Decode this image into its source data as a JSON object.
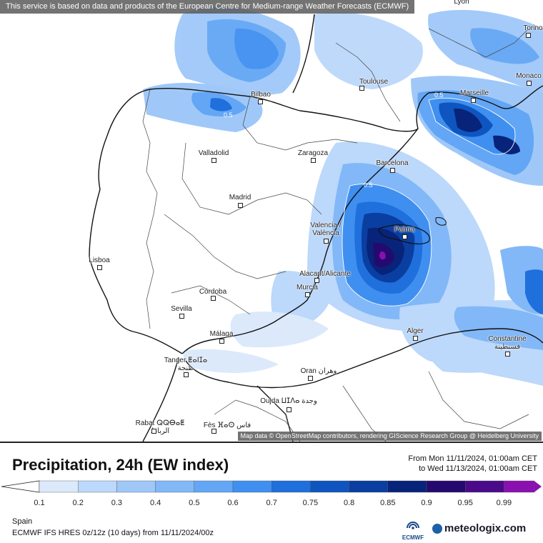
{
  "banner": "This service is based on data and products of the European Centre for Medium-range Weather Forecasts (ECMWF)",
  "attribution": "Map data © OpenStreetMap contributors, rendering GIScience Research Group @ Heidelberg University",
  "title": "Precipitation, 24h (EW index)",
  "date_from": "From Mon 11/11/2024, 01:00am CET",
  "date_to": "to Wed 11/13/2024, 01:00am CET",
  "region": "Spain",
  "model_line": "ECMWF IFS HRES 0z/12z (10 days) from 11/11/2024/00z",
  "ecmwf_logo_text": "ECMWF",
  "brand": "meteologix.com",
  "legend": {
    "ticks": [
      "0.1",
      "0.2",
      "0.3",
      "0.4",
      "0.5",
      "0.6",
      "0.7",
      "0.75",
      "0.8",
      "0.85",
      "0.9",
      "0.95",
      "0.99"
    ],
    "colors": [
      "#dbe9fb",
      "#bcd8fb",
      "#9fc8f9",
      "#82b8f7",
      "#63a6f5",
      "#3f8ff0",
      "#1f6fdc",
      "#0f55c0",
      "#0a3ea0",
      "#08237a",
      "#240a6e",
      "#4a0a8a",
      "#8a10b0"
    ]
  },
  "cities": [
    {
      "name": "Lyon"
    },
    {
      "name": "Torino"
    },
    {
      "name": "Toulouse"
    },
    {
      "name": "Monaco"
    },
    {
      "name": "Marseille"
    },
    {
      "name": "Bilbao"
    },
    {
      "name": "Valladolid"
    },
    {
      "name": "Zaragoza"
    },
    {
      "name": "Barcelona"
    },
    {
      "name": "Madrid"
    },
    {
      "name": "Valencia / València"
    },
    {
      "name": "Palma"
    },
    {
      "name": "Lisboa"
    },
    {
      "name": "Alacant/Alicante"
    },
    {
      "name": "Murcia"
    },
    {
      "name": "Córdoba"
    },
    {
      "name": "Sevilla"
    },
    {
      "name": "Málaga"
    },
    {
      "name": "Alger"
    },
    {
      "name": "Constantine قسنطينة"
    },
    {
      "name": "Tanger ⵟⴰⵏⵊⴰ طنجة"
    },
    {
      "name": "Oran وهران"
    },
    {
      "name": "Oujda ⵡⵊⴷⴰ وجدة"
    },
    {
      "name": "Rabat ⵕⵕⴱⴰⵟ الرباط"
    },
    {
      "name": "Fès ⴼⴰⵙ فاس"
    }
  ],
  "contour_labels": [
    "0.5",
    "0.5",
    "0.5"
  ]
}
